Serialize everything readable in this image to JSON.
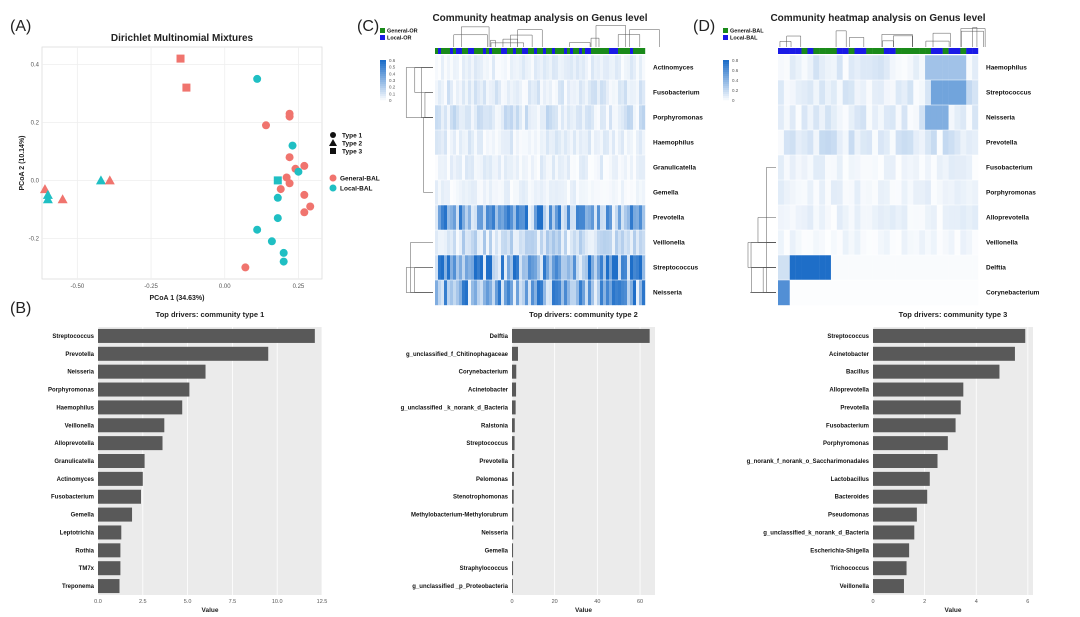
{
  "panel_labels": {
    "a": "(A)",
    "b": "(B)",
    "c": "(C)",
    "d": "(D)"
  },
  "colors": {
    "general": "#f0746e",
    "local": "#1fbfc3",
    "bar": "#595959",
    "panel_bg": "#ebebeb",
    "heat_low": "#ffffff",
    "heat_high": "#1f6fc7",
    "hm_green": "#1a8a1a",
    "hm_blue": "#1a1ae6"
  },
  "chart_data": [
    {
      "id": "A",
      "type": "scatter",
      "title": "Dirichlet Multinomial Mixtures",
      "xlabel": "PCoA 1 (34.63%)",
      "ylabel": "PCoA 2 (10.14%)",
      "xlim": [
        -0.62,
        0.33
      ],
      "ylim": [
        -0.34,
        0.46
      ],
      "x_ticks": [
        "-0.50",
        "-0.25",
        "0.00",
        "0.25"
      ],
      "x_tick_values": [
        -0.5,
        -0.25,
        0.0,
        0.25
      ],
      "y_ticks": [
        "0.4",
        "0.2",
        "0.0",
        "-0.2"
      ],
      "y_tick_values": [
        0.4,
        0.2,
        0.0,
        -0.2
      ],
      "shape_legend": {
        "items": [
          "Type 1",
          "Type 2",
          "Type 3"
        ]
      },
      "color_legend": {
        "items": [
          "General-BAL",
          "Local-BAL"
        ]
      },
      "points": [
        {
          "x": -0.15,
          "y": 0.42,
          "type": 3,
          "group": "General-BAL"
        },
        {
          "x": -0.13,
          "y": 0.32,
          "type": 3,
          "group": "General-BAL"
        },
        {
          "x": 0.11,
          "y": 0.35,
          "type": 1,
          "group": "Local-BAL"
        },
        {
          "x": 0.22,
          "y": 0.23,
          "type": 1,
          "group": "General-BAL"
        },
        {
          "x": 0.22,
          "y": 0.22,
          "type": 1,
          "group": "General-BAL"
        },
        {
          "x": 0.14,
          "y": 0.19,
          "type": 1,
          "group": "General-BAL"
        },
        {
          "x": 0.23,
          "y": 0.12,
          "type": 1,
          "group": "Local-BAL"
        },
        {
          "x": 0.22,
          "y": 0.08,
          "type": 1,
          "group": "General-BAL"
        },
        {
          "x": 0.27,
          "y": 0.05,
          "type": 1,
          "group": "General-BAL"
        },
        {
          "x": 0.24,
          "y": 0.04,
          "type": 1,
          "group": "General-BAL"
        },
        {
          "x": 0.25,
          "y": 0.03,
          "type": 1,
          "group": "Local-BAL"
        },
        {
          "x": 0.21,
          "y": 0.01,
          "type": 1,
          "group": "General-BAL"
        },
        {
          "x": 0.22,
          "y": -0.01,
          "type": 1,
          "group": "General-BAL"
        },
        {
          "x": 0.19,
          "y": -0.03,
          "type": 1,
          "group": "General-BAL"
        },
        {
          "x": 0.27,
          "y": -0.05,
          "type": 1,
          "group": "General-BAL"
        },
        {
          "x": 0.18,
          "y": -0.06,
          "type": 1,
          "group": "Local-BAL"
        },
        {
          "x": 0.29,
          "y": -0.09,
          "type": 1,
          "group": "General-BAL"
        },
        {
          "x": 0.27,
          "y": -0.11,
          "type": 1,
          "group": "General-BAL"
        },
        {
          "x": 0.18,
          "y": 0.0,
          "type": 3,
          "group": "Local-BAL"
        },
        {
          "x": 0.18,
          "y": -0.13,
          "type": 1,
          "group": "Local-BAL"
        },
        {
          "x": 0.11,
          "y": -0.17,
          "type": 1,
          "group": "Local-BAL"
        },
        {
          "x": 0.16,
          "y": -0.21,
          "type": 1,
          "group": "Local-BAL"
        },
        {
          "x": 0.2,
          "y": -0.25,
          "type": 1,
          "group": "Local-BAL"
        },
        {
          "x": 0.2,
          "y": -0.28,
          "type": 1,
          "group": "Local-BAL"
        },
        {
          "x": 0.07,
          "y": -0.3,
          "type": 1,
          "group": "General-BAL"
        },
        {
          "x": -0.61,
          "y": -0.03,
          "type": 2,
          "group": "General-BAL"
        },
        {
          "x": -0.6,
          "y": -0.05,
          "type": 2,
          "group": "Local-BAL"
        },
        {
          "x": -0.6,
          "y": -0.065,
          "type": 2,
          "group": "Local-BAL"
        },
        {
          "x": -0.55,
          "y": -0.065,
          "type": 2,
          "group": "General-BAL"
        },
        {
          "x": -0.42,
          "y": 0.0,
          "type": 2,
          "group": "Local-BAL"
        },
        {
          "x": -0.39,
          "y": 0.0,
          "type": 2,
          "group": "General-BAL"
        }
      ]
    },
    {
      "id": "B1",
      "type": "bar",
      "orientation": "horizontal",
      "title": "Top drivers: community type 1",
      "xlabel": "Value",
      "xlim": [
        0,
        12.5
      ],
      "x_ticks": [
        "0.0",
        "2.5",
        "5.0",
        "7.5",
        "10.0",
        "12.5"
      ],
      "x_tick_values": [
        0,
        2.5,
        5,
        7.5,
        10,
        12.5
      ],
      "categories": [
        "Streptococcus",
        "Prevotella",
        "Neisseria",
        "Porphyromonas",
        "Haemophilus",
        "Veillonella",
        "Alloprevotella",
        "Granulicatella",
        "Actinomyces",
        "Fusobacterium",
        "Gemella",
        "Leptotrichia",
        "Rothia",
        "TM7x",
        "Treponema"
      ],
      "values": [
        12.1,
        9.5,
        6.0,
        5.1,
        4.7,
        3.7,
        3.6,
        2.6,
        2.5,
        2.4,
        1.9,
        1.3,
        1.25,
        1.25,
        1.2
      ]
    },
    {
      "id": "B2",
      "type": "bar",
      "orientation": "horizontal",
      "title": "Top drivers: community type 2",
      "xlabel": "Value",
      "xlim": [
        0,
        67
      ],
      "x_ticks": [
        "0",
        "20",
        "40",
        "60"
      ],
      "x_tick_values": [
        0,
        20,
        40,
        60
      ],
      "categories": [
        "Delftia",
        "g_unclassified_f_Chitinophagaceae",
        "Corynebacterium",
        "Acinetobacter",
        "g_unclassified _k_norank_d_Bacteria",
        "Ralstonia",
        "Streptococcus",
        "Prevotella",
        "Pelomonas",
        "Stenotrophomonas",
        "Methylobacterium-Methylorubrum",
        "Neisseria",
        "Gemella",
        "Straphylococcus",
        "g_unclassified _p_Proteobacteria"
      ],
      "values": [
        64.5,
        2.8,
        2.0,
        1.9,
        1.7,
        1.3,
        1.2,
        1.0,
        0.9,
        0.8,
        0.7,
        0.6,
        0.5,
        0.5,
        0.4
      ]
    },
    {
      "id": "B3",
      "type": "bar",
      "orientation": "horizontal",
      "title": "Top drivers: community type 3",
      "xlabel": "Value",
      "xlim": [
        0,
        6.2
      ],
      "x_ticks": [
        "0",
        "2",
        "4",
        "6"
      ],
      "x_tick_values": [
        0,
        2,
        4,
        6
      ],
      "categories": [
        "Streptococcus",
        "Acinetobacter",
        "Bacillus",
        "Alloprevotella",
        "Prevotella",
        "Fusobacterium",
        "Porphyromonas",
        "g_norank_f_norank_o_Saccharimonadales",
        "Lactobacillus",
        "Bacteroides",
        "Pseudomonas",
        "g_unclassified_k_norank_d_Bacteria",
        "Escherichia-Shigella",
        "Trichococcus",
        "Veillonella"
      ],
      "values": [
        5.9,
        5.5,
        4.9,
        3.5,
        3.4,
        3.2,
        2.9,
        2.5,
        2.2,
        2.1,
        1.7,
        1.6,
        1.4,
        1.3,
        1.2
      ]
    },
    {
      "id": "C",
      "type": "heatmap",
      "title": "Community heatmap analysis on Genus level",
      "group_legend": [
        "General-OR",
        "Local-OR"
      ],
      "scale_ticks": [
        "0.6",
        "0.5",
        "0.4",
        "0.3",
        "0.2",
        "0.1",
        "0"
      ],
      "rows": [
        "Actinomyces",
        "Fusobacterium",
        "Porphyromonas",
        "Haemophilus",
        "Granulicatella",
        "Gemella",
        "Prevotella",
        "Veillonella",
        "Streptococcus",
        "Neisseria"
      ],
      "row_mean": [
        0.05,
        0.07,
        0.09,
        0.06,
        0.05,
        0.04,
        0.3,
        0.12,
        0.35,
        0.3
      ]
    },
    {
      "id": "D",
      "type": "heatmap",
      "title": "Community heatmap analysis on Genus level",
      "group_legend": [
        "General-BAL",
        "Local-BAL"
      ],
      "scale_ticks": [
        "0.8",
        "0.6",
        "0.4",
        "0.2",
        "0"
      ],
      "rows": [
        "Haemophilus",
        "Streptococcus",
        "Neisseria",
        "Prevotella",
        "Fusobacterium",
        "Porphyromonas",
        "Alloprevotella",
        "Veillonella",
        "Delftia",
        "Corynebacterium"
      ],
      "row_mean": [
        0.06,
        0.08,
        0.06,
        0.08,
        0.04,
        0.04,
        0.04,
        0.03,
        0.15,
        0.05
      ]
    }
  ]
}
